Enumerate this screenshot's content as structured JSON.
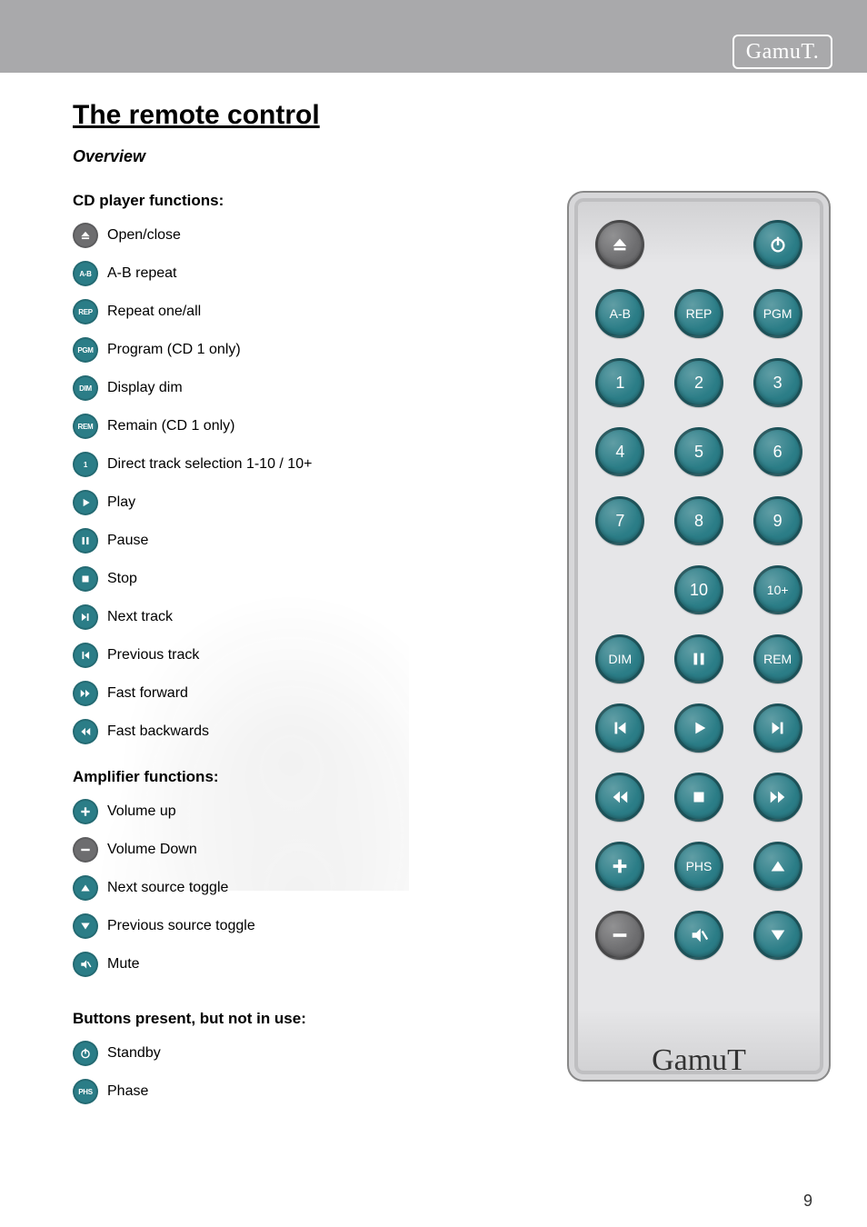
{
  "brand": "GamuT.",
  "page_number": "9",
  "title": "The remote control",
  "subtitle": "Overview",
  "colors": {
    "page_bg": "#a9a9ab",
    "content_bg": "#ffffff",
    "btn_gray": "#6d6d6f",
    "btn_teal": "#2b7d87",
    "text": "#111111",
    "remote_body": "#e6e6e8",
    "remote_border": "#888888"
  },
  "sections": {
    "cd": {
      "heading": "CD player functions:",
      "items": [
        {
          "name": "open-close",
          "label": "Open/close",
          "color": "#6d6d6f",
          "icon": "eject"
        },
        {
          "name": "ab-repeat",
          "label": "A-B repeat",
          "color": "#2b7d87",
          "icon": "text",
          "text": "A-B"
        },
        {
          "name": "repeat",
          "label": "Repeat one/all",
          "color": "#2b7d87",
          "icon": "text",
          "text": "REP"
        },
        {
          "name": "program",
          "label": "Program (CD 1 only)",
          "color": "#2b7d87",
          "icon": "text",
          "text": "PGM"
        },
        {
          "name": "dim",
          "label": "Display dim",
          "color": "#2b7d87",
          "icon": "text",
          "text": "DIM"
        },
        {
          "name": "remain",
          "label": "Remain (CD 1 only)",
          "color": "#2b7d87",
          "icon": "text",
          "text": "REM"
        },
        {
          "name": "direct-track",
          "label": "Direct track selection 1-10 / 10+",
          "color": "#2b7d87",
          "icon": "text",
          "text": "1"
        },
        {
          "name": "play",
          "label": "Play",
          "color": "#2b7d87",
          "icon": "play"
        },
        {
          "name": "pause",
          "label": "Pause",
          "color": "#2b7d87",
          "icon": "pause"
        },
        {
          "name": "stop",
          "label": "Stop",
          "color": "#2b7d87",
          "icon": "stop"
        },
        {
          "name": "next-track",
          "label": "Next track",
          "color": "#2b7d87",
          "icon": "next"
        },
        {
          "name": "prev-track",
          "label": "Previous track",
          "color": "#2b7d87",
          "icon": "prev"
        },
        {
          "name": "ffwd",
          "label": "Fast forward",
          "color": "#2b7d87",
          "icon": "ffwd"
        },
        {
          "name": "rwd",
          "label": "Fast backwards",
          "color": "#2b7d87",
          "icon": "rwd"
        }
      ]
    },
    "amp": {
      "heading": "Amplifier functions:",
      "items": [
        {
          "name": "vol-up",
          "label": "Volume up",
          "color": "#2b7d87",
          "icon": "plus"
        },
        {
          "name": "vol-down",
          "label": "Volume Down",
          "color": "#6d6d6f",
          "icon": "minus"
        },
        {
          "name": "next-source",
          "label": "Next source toggle",
          "color": "#2b7d87",
          "icon": "tri-up"
        },
        {
          "name": "prev-source",
          "label": "Previous source toggle",
          "color": "#2b7d87",
          "icon": "tri-down"
        },
        {
          "name": "mute",
          "label": "Mute",
          "color": "#2b7d87",
          "icon": "mute"
        }
      ]
    },
    "unused": {
      "heading": "Buttons present, but not in use:",
      "items": [
        {
          "name": "standby",
          "label": "Standby",
          "color": "#2b7d87",
          "icon": "power"
        },
        {
          "name": "phase",
          "label": "Phase",
          "color": "#2b7d87",
          "icon": "text",
          "text": "PHS"
        }
      ]
    }
  },
  "remote": {
    "brand": "GamuT",
    "rows": [
      [
        {
          "name": "eject",
          "color": "#6d6d6f",
          "icon": "eject"
        },
        null,
        {
          "name": "power",
          "color": "#2b7d87",
          "icon": "power"
        }
      ],
      [
        {
          "name": "ab",
          "color": "#2b7d87",
          "icon": "text",
          "text": "A-B"
        },
        {
          "name": "rep",
          "color": "#2b7d87",
          "icon": "text",
          "text": "REP"
        },
        {
          "name": "pgm",
          "color": "#2b7d87",
          "icon": "text",
          "text": "PGM"
        }
      ],
      [
        {
          "name": "num1",
          "color": "#2b7d87",
          "icon": "text",
          "text": "1"
        },
        {
          "name": "num2",
          "color": "#2b7d87",
          "icon": "text",
          "text": "2"
        },
        {
          "name": "num3",
          "color": "#2b7d87",
          "icon": "text",
          "text": "3"
        }
      ],
      [
        {
          "name": "num4",
          "color": "#2b7d87",
          "icon": "text",
          "text": "4"
        },
        {
          "name": "num5",
          "color": "#2b7d87",
          "icon": "text",
          "text": "5"
        },
        {
          "name": "num6",
          "color": "#2b7d87",
          "icon": "text",
          "text": "6"
        }
      ],
      [
        {
          "name": "num7",
          "color": "#2b7d87",
          "icon": "text",
          "text": "7"
        },
        {
          "name": "num8",
          "color": "#2b7d87",
          "icon": "text",
          "text": "8"
        },
        {
          "name": "num9",
          "color": "#2b7d87",
          "icon": "text",
          "text": "9"
        }
      ],
      [
        null,
        {
          "name": "num10",
          "color": "#2b7d87",
          "icon": "text",
          "text": "10"
        },
        {
          "name": "num10p",
          "color": "#2b7d87",
          "icon": "text",
          "text": "10+"
        }
      ],
      [
        {
          "name": "dim",
          "color": "#2b7d87",
          "icon": "text",
          "text": "DIM"
        },
        {
          "name": "pause",
          "color": "#2b7d87",
          "icon": "pause"
        },
        {
          "name": "rem",
          "color": "#2b7d87",
          "icon": "text",
          "text": "REM"
        }
      ],
      [
        {
          "name": "prev",
          "color": "#2b7d87",
          "icon": "prev"
        },
        {
          "name": "play",
          "color": "#2b7d87",
          "icon": "play"
        },
        {
          "name": "next",
          "color": "#2b7d87",
          "icon": "next"
        }
      ],
      [
        {
          "name": "rwd",
          "color": "#2b7d87",
          "icon": "rwd"
        },
        {
          "name": "stop",
          "color": "#2b7d87",
          "icon": "stop"
        },
        {
          "name": "ffwd",
          "color": "#2b7d87",
          "icon": "ffwd"
        }
      ],
      [
        {
          "name": "plus",
          "color": "#2b7d87",
          "icon": "plus"
        },
        {
          "name": "phs",
          "color": "#2b7d87",
          "icon": "text",
          "text": "PHS"
        },
        {
          "name": "up",
          "color": "#2b7d87",
          "icon": "tri-up"
        }
      ],
      [
        {
          "name": "minus",
          "color": "#6d6d6f",
          "icon": "minus"
        },
        {
          "name": "mute",
          "color": "#2b7d87",
          "icon": "mute"
        },
        {
          "name": "down",
          "color": "#2b7d87",
          "icon": "tri-down"
        }
      ]
    ]
  }
}
